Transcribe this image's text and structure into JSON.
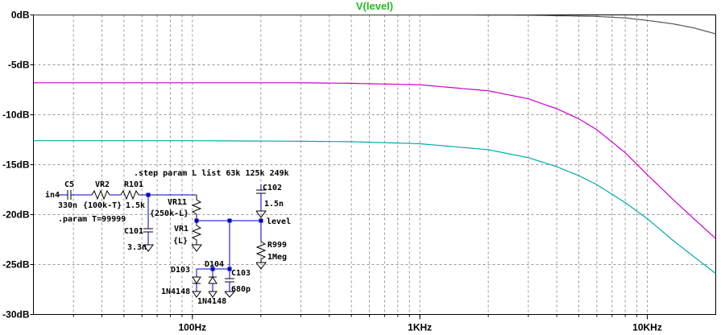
{
  "chart_data": {
    "type": "line",
    "title": "V(level)",
    "title_color": "#22bb22",
    "xscale": "log",
    "xlim_hz": [
      20,
      20000
    ],
    "ylim_db": [
      -30,
      0
    ],
    "y_ticks": [
      0,
      -5,
      -10,
      -15,
      -20,
      -25,
      -30
    ],
    "y_tick_labels": [
      "0dB",
      "-5dB",
      "-10dB",
      "-15dB",
      "-20dB",
      "-25dB",
      "-30dB"
    ],
    "x_major_ticks": [
      100,
      1000,
      10000
    ],
    "x_tick_labels": [
      "100Hz",
      "1KHz",
      "10KHz"
    ],
    "grid": true,
    "series": [
      {
        "color": "#555555",
        "x": [
          20,
          100,
          1000,
          3000,
          6000,
          8000,
          10000,
          13000,
          16000,
          20000
        ],
        "y": [
          -0.01,
          -0.01,
          -0.01,
          -0.03,
          -0.15,
          -0.3,
          -0.55,
          -0.9,
          -1.3,
          -1.9
        ]
      },
      {
        "color": "#cc00cc",
        "x": [
          20,
          100,
          300,
          500,
          1000,
          2000,
          3000,
          4000,
          5000,
          6000,
          8000,
          10000,
          13000,
          16000,
          20000
        ],
        "y": [
          -6.8,
          -6.8,
          -6.8,
          -6.85,
          -7.0,
          -7.6,
          -8.4,
          -9.4,
          -10.4,
          -11.5,
          -13.8,
          -16.0,
          -18.5,
          -20.4,
          -22.4
        ]
      },
      {
        "color": "#00aaaa",
        "x": [
          20,
          100,
          300,
          500,
          1000,
          2000,
          3000,
          4000,
          5000,
          6000,
          8000,
          10000,
          13000,
          16000,
          20000
        ],
        "y": [
          -12.6,
          -12.6,
          -12.65,
          -12.7,
          -12.9,
          -13.5,
          -14.3,
          -15.2,
          -16.1,
          -17.0,
          -18.8,
          -20.4,
          -22.6,
          -24.2,
          -25.9
        ]
      }
    ]
  },
  "schematic": {
    "directive_step": ".step param L list 63k 125k 249k",
    "directive_param": ".param T=99999",
    "in_label": "in4",
    "c5_name": "C5",
    "c5_value": "330n",
    "vr2_name": "VR2",
    "vr2_value": "{100k-T}",
    "r101_name": "R101",
    "r101_value": "1.5k",
    "c101_name": "C101",
    "c101_value": "3.3n",
    "vr11_name": "VR11",
    "vr11_value": "{250k-L}",
    "vr1_name": "VR1",
    "vr1_value": "{L}",
    "d103_name": "D103",
    "d103_value": "1N4148",
    "d104_name": "D104",
    "d104_value": "1N4148",
    "c103_name": "C103",
    "c103_value": "680p",
    "c102_name": "C102",
    "c102_value": "1.5n",
    "level_label": "level",
    "r999_name": "R999",
    "r999_value": "1Meg"
  }
}
